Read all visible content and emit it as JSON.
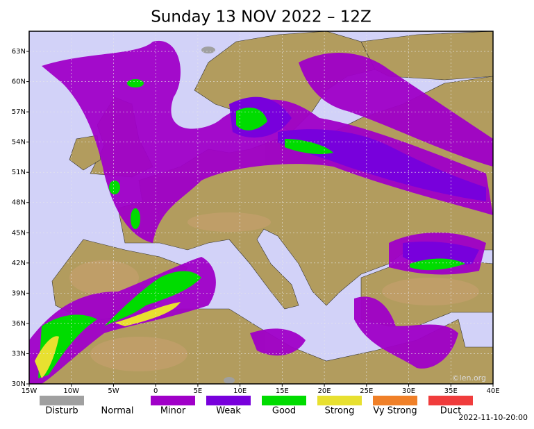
{
  "title": "Sunday 13 NOV 2022 – 12Z",
  "map": {
    "lon_range": [
      -15,
      40
    ],
    "lat_range": [
      30,
      65
    ],
    "lat_ticks": [
      {
        "value": 63,
        "label": "63N"
      },
      {
        "value": 60,
        "label": "60N"
      },
      {
        "value": 57,
        "label": "57N"
      },
      {
        "value": 54,
        "label": "54N"
      },
      {
        "value": 51,
        "label": "51N"
      },
      {
        "value": 48,
        "label": "48N"
      },
      {
        "value": 45,
        "label": "45N"
      },
      {
        "value": 42,
        "label": "42N"
      },
      {
        "value": 39,
        "label": "39N"
      },
      {
        "value": 36,
        "label": "36N"
      },
      {
        "value": 33,
        "label": "33N"
      },
      {
        "value": 30,
        "label": "30N"
      }
    ],
    "lon_ticks": [
      {
        "value": -15,
        "label": "15W"
      },
      {
        "value": -10,
        "label": "10W"
      },
      {
        "value": -5,
        "label": "5W"
      },
      0,
      {
        "value": 5,
        "label": "5E"
      },
      {
        "value": 10,
        "label": "10E"
      },
      {
        "value": 15,
        "label": "15E"
      },
      {
        "value": 20,
        "label": "20E"
      },
      {
        "value": 25,
        "label": "25E"
      },
      {
        "value": 30,
        "label": "30E"
      },
      {
        "value": 35,
        "label": "35E"
      },
      {
        "value": 40,
        "label": "40E"
      }
    ]
  },
  "legend": [
    {
      "label": "Disturb",
      "color": "#a0a0a0"
    },
    {
      "label": "Normal"
    },
    {
      "label": "Minor",
      "color": "#a000c8"
    },
    {
      "label": "Weak",
      "color": "#7800dc"
    },
    {
      "label": "Good",
      "color": "#00dc00"
    },
    {
      "label": "Strong",
      "color": "#e8e030"
    },
    {
      "label": "Vy Strong",
      "color": "#f08028"
    },
    {
      "label": "Duct",
      "color": "#f03c3c"
    }
  ],
  "watermark": "©len.org",
  "timestamp": "2022-11-10-20:00"
}
